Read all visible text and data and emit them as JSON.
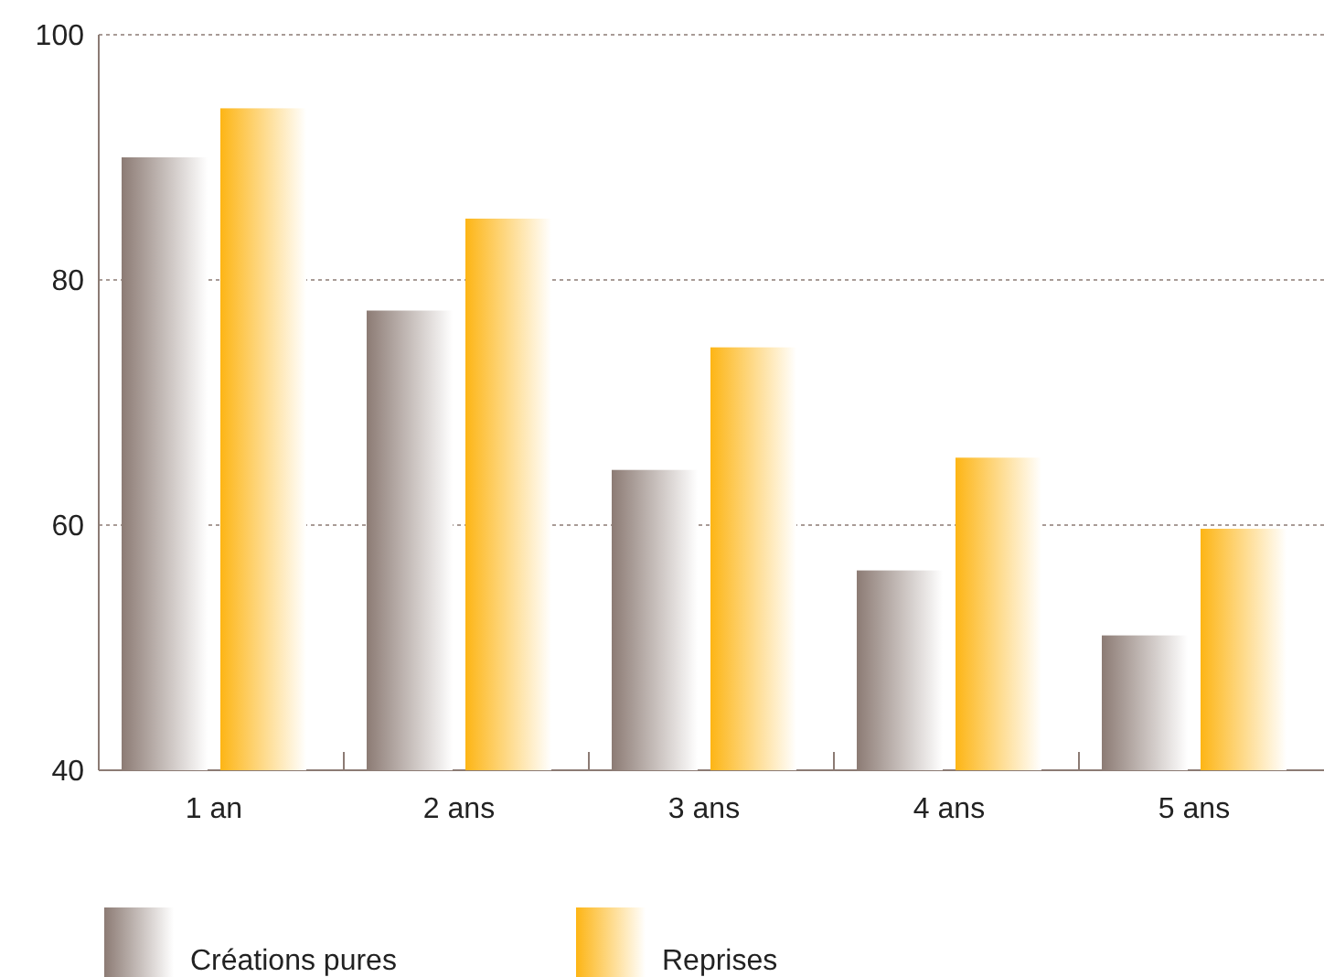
{
  "chart_data": {
    "type": "bar",
    "categories": [
      "1 an",
      "2 ans",
      "3 ans",
      "4 ans",
      "5 ans"
    ],
    "series": [
      {
        "name": "Créations pures",
        "color": "#8c7b74",
        "values": [
          90,
          77.5,
          64.5,
          56.3,
          51
        ]
      },
      {
        "name": "Reprises",
        "color": "#fdb515",
        "values": [
          94,
          85,
          74.5,
          65.5,
          59.7
        ]
      }
    ],
    "ylim": [
      40,
      100
    ],
    "yticks": [
      40,
      60,
      80,
      100
    ],
    "grid": "y",
    "legend": "bottom"
  }
}
